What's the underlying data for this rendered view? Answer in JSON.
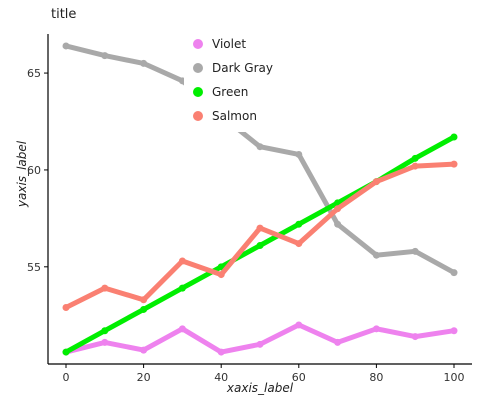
{
  "chart_data": {
    "type": "scatter",
    "title": "title",
    "xlabel": "xaxis_label",
    "ylabel": "yaxis_label",
    "xlim": [
      0,
      100
    ],
    "ylim": [
      50.5,
      66.5
    ],
    "x_ticks": [
      0,
      20,
      40,
      60,
      80,
      100
    ],
    "y_ticks": [
      55,
      60,
      65
    ],
    "grid": false,
    "legend_position": "top-center",
    "series": [
      {
        "name": "Violet",
        "color": "#ee82ee",
        "x": [
          0,
          10,
          20,
          30,
          40,
          50,
          60,
          70,
          80,
          90,
          100
        ],
        "y": [
          50.6,
          51.1,
          50.7,
          51.8,
          50.6,
          51.0,
          52.0,
          51.1,
          51.8,
          51.4,
          51.7
        ]
      },
      {
        "name": "Dark Gray",
        "color": "#a9a9a9",
        "x": [
          0,
          10,
          20,
          30,
          40,
          50,
          60,
          70,
          80,
          90,
          100
        ],
        "y": [
          66.4,
          65.9,
          65.5,
          64.6,
          62.8,
          61.2,
          60.8,
          57.2,
          55.6,
          55.8,
          54.7
        ]
      },
      {
        "name": "Green",
        "color": "#00ee00",
        "x": [
          0,
          10,
          20,
          30,
          40,
          50,
          60,
          70,
          80,
          90,
          100
        ],
        "y": [
          50.6,
          51.7,
          52.8,
          53.9,
          55.0,
          56.1,
          57.2,
          58.3,
          59.4,
          60.6,
          61.7
        ]
      },
      {
        "name": "Salmon",
        "color": "#fa8072",
        "x": [
          0,
          10,
          20,
          30,
          40,
          50,
          60,
          70,
          80,
          90,
          100
        ],
        "y": [
          52.9,
          53.9,
          53.3,
          55.3,
          54.6,
          57.0,
          56.2,
          58.0,
          59.4,
          60.2,
          60.3
        ]
      }
    ]
  }
}
